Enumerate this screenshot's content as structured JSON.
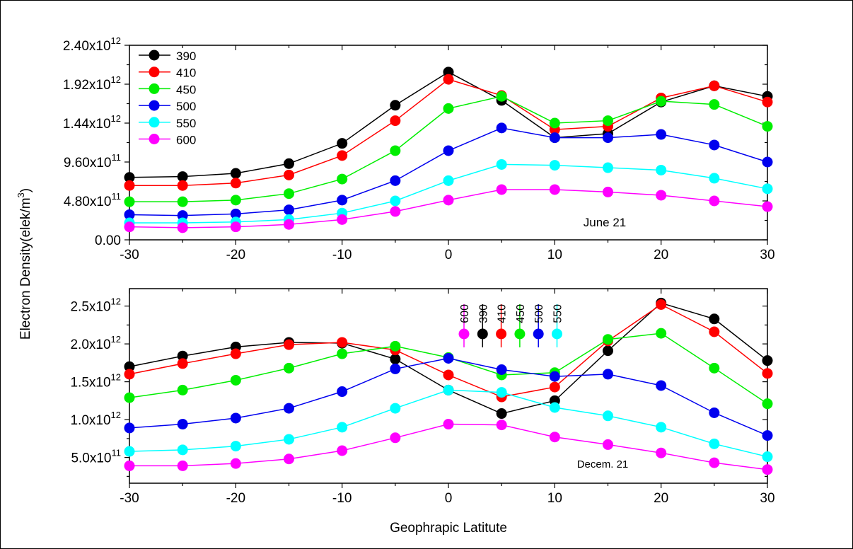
{
  "chart_data": {
    "ylabel": "Electron Density(elek/m³)",
    "ylabel_parts": {
      "text": "Electron Density(elek/m",
      "sup": "3",
      "close": ")"
    },
    "xlabel": "Geophrapic Latitute",
    "x": [
      -30,
      -25,
      -20,
      -15,
      -10,
      -5,
      0,
      5,
      10,
      15,
      20,
      25,
      30
    ],
    "x_ticks": [
      "-30",
      "-20",
      "-10",
      "0",
      "10",
      "20",
      "30"
    ],
    "panels": [
      {
        "type": "line",
        "annotation": "June 21",
        "xlim": [
          -30,
          30
        ],
        "ylim": [
          0,
          2400000000000.0
        ],
        "y_ticks": [
          {
            "value": 0,
            "mant": "0.00",
            "exp": ""
          },
          {
            "value": 480000000000.0,
            "mant": "4.80x10",
            "exp": "11"
          },
          {
            "value": 960000000000.0,
            "mant": "9.60x10",
            "exp": "11"
          },
          {
            "value": 1440000000000.0,
            "mant": "1.44x10",
            "exp": "12"
          },
          {
            "value": 1920000000000.0,
            "mant": "1.92x10",
            "exp": "12"
          },
          {
            "value": 2400000000000.0,
            "mant": "2.40x10",
            "exp": "12"
          }
        ],
        "legend": [
          "390",
          "410",
          "450",
          "500",
          "550",
          "600"
        ],
        "series": [
          {
            "name": "390",
            "color": "#000000",
            "values": [
              770000000000.0,
              780000000000.0,
              820000000000.0,
              940000000000.0,
              1190000000000.0,
              1660000000000.0,
              2070000000000.0,
              1720000000000.0,
              1260000000000.0,
              1310000000000.0,
              1700000000000.0,
              1900000000000.0,
              1770000000000.0
            ]
          },
          {
            "name": "410",
            "color": "#ff0000",
            "values": [
              670000000000.0,
              670000000000.0,
              700000000000.0,
              800000000000.0,
              1040000000000.0,
              1470000000000.0,
              1980000000000.0,
              1780000000000.0,
              1360000000000.0,
              1400000000000.0,
              1750000000000.0,
              1900000000000.0,
              1700000000000.0
            ]
          },
          {
            "name": "450",
            "color": "#00ee00",
            "values": [
              470000000000.0,
              470000000000.0,
              490000000000.0,
              570000000000.0,
              750000000000.0,
              1100000000000.0,
              1620000000000.0,
              1770000000000.0,
              1440000000000.0,
              1470000000000.0,
              1710000000000.0,
              1670000000000.0,
              1400000000000.0
            ]
          },
          {
            "name": "500",
            "color": "#0000ee",
            "values": [
              310000000000.0,
              300000000000.0,
              320000000000.0,
              370000000000.0,
              490000000000.0,
              730000000000.0,
              1100000000000.0,
              1380000000000.0,
              1260000000000.0,
              1260000000000.0,
              1300000000000.0,
              1170000000000.0,
              960000000000.0
            ]
          },
          {
            "name": "550",
            "color": "#00ffff",
            "values": [
              210000000000.0,
              210000000000.0,
              220000000000.0,
              250000000000.0,
              330000000000.0,
              480000000000.0,
              730000000000.0,
              930000000000.0,
              920000000000.0,
              890000000000.0,
              860000000000.0,
              760000000000.0,
              630000000000.0
            ]
          },
          {
            "name": "600",
            "color": "#ff00ff",
            "values": [
              160000000000.0,
              150000000000.0,
              160000000000.0,
              190000000000.0,
              250000000000.0,
              350000000000.0,
              490000000000.0,
              620000000000.0,
              620000000000.0,
              590000000000.0,
              550000000000.0,
              480000000000.0,
              410000000000.0
            ]
          }
        ]
      },
      {
        "type": "line",
        "annotation": "Decem. 21",
        "xlim": [
          -30,
          30
        ],
        "ylim": [
          160000000000.0,
          2730000000000.0
        ],
        "y_ticks": [
          {
            "value": 500000000000.0,
            "mant": "5.0x10",
            "exp": "11"
          },
          {
            "value": 1000000000000.0,
            "mant": "1.0x10",
            "exp": "12"
          },
          {
            "value": 1500000000000.0,
            "mant": "1.5x10",
            "exp": "12"
          },
          {
            "value": 2000000000000.0,
            "mant": "2.0x10",
            "exp": "12"
          },
          {
            "value": 2500000000000.0,
            "mant": "2.5x10",
            "exp": "12"
          }
        ],
        "legend": [
          "600",
          "390",
          "410",
          "450",
          "500",
          "550"
        ],
        "series": [
          {
            "name": "390",
            "color": "#000000",
            "values": [
              1700000000000.0,
              1840000000000.0,
              1960000000000.0,
              2020000000000.0,
              2010000000000.0,
              1800000000000.0,
              1390000000000.0,
              1080000000000.0,
              1250000000000.0,
              1910000000000.0,
              2540000000000.0,
              2330000000000.0,
              1780000000000.0
            ]
          },
          {
            "name": "410",
            "color": "#ff0000",
            "values": [
              1600000000000.0,
              1740000000000.0,
              1870000000000.0,
              1990000000000.0,
              2020000000000.0,
              1920000000000.0,
              1590000000000.0,
              1300000000000.0,
              1430000000000.0,
              2040000000000.0,
              2520000000000.0,
              2160000000000.0,
              1610000000000.0
            ]
          },
          {
            "name": "450",
            "color": "#00ee00",
            "values": [
              1290000000000.0,
              1390000000000.0,
              1520000000000.0,
              1680000000000.0,
              1870000000000.0,
              1970000000000.0,
              1820000000000.0,
              1590000000000.0,
              1620000000000.0,
              2060000000000.0,
              2140000000000.0,
              1680000000000.0,
              1210000000000.0
            ]
          },
          {
            "name": "500",
            "color": "#0000ee",
            "values": [
              890000000000.0,
              940000000000.0,
              1020000000000.0,
              1150000000000.0,
              1370000000000.0,
              1670000000000.0,
              1810000000000.0,
              1660000000000.0,
              1570000000000.0,
              1600000000000.0,
              1450000000000.0,
              1090000000000.0,
              790000000000.0
            ]
          },
          {
            "name": "550",
            "color": "#00ffff",
            "values": [
              580000000000.0,
              600000000000.0,
              650000000000.0,
              740000000000.0,
              900000000000.0,
              1150000000000.0,
              1390000000000.0,
              1360000000000.0,
              1160000000000.0,
              1050000000000.0,
              900000000000.0,
              680000000000.0,
              510000000000.0
            ]
          },
          {
            "name": "600",
            "color": "#ff00ff",
            "values": [
              390000000000.0,
              390000000000.0,
              420000000000.0,
              480000000000.0,
              590000000000.0,
              760000000000.0,
              940000000000.0,
              930000000000.0,
              770000000000.0,
              670000000000.0,
              560000000000.0,
              430000000000.0,
              340000000000.0
            ]
          }
        ]
      }
    ]
  }
}
